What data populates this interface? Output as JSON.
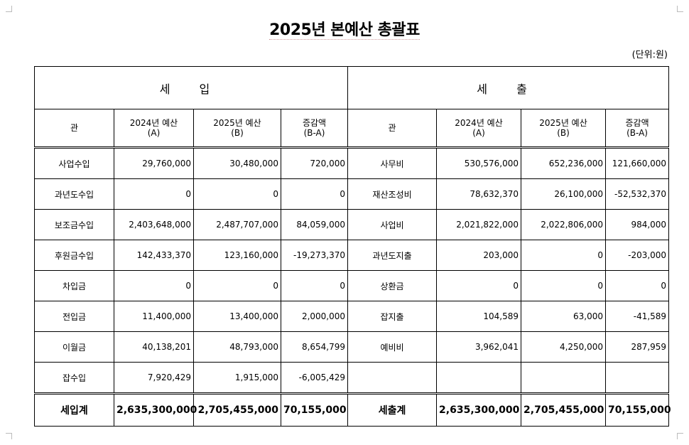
{
  "title": "2025년   본예산  총괄표",
  "unit_label": "(단위:원)",
  "sections": {
    "income": "세 입",
    "expense": "세 출"
  },
  "headers": {
    "category": "관",
    "prev_budget": [
      "2024년 예산",
      "(A)"
    ],
    "curr_budget": [
      "2025년 예산",
      "(B)"
    ],
    "diff": [
      "증감액",
      "(B-A)"
    ]
  },
  "rows": [
    {
      "in_name": "사업수입",
      "in_a": "29,760,000",
      "in_b": "30,480,000",
      "in_d": "720,000",
      "ex_name": "사무비",
      "ex_a": "530,576,000",
      "ex_b": "652,236,000",
      "ex_d": "121,660,000"
    },
    {
      "in_name": "과년도수입",
      "in_a": "0",
      "in_b": "0",
      "in_d": "0",
      "ex_name": "재산조성비",
      "ex_a": "78,632,370",
      "ex_b": "26,100,000",
      "ex_d": "-52,532,370"
    },
    {
      "in_name": "보조금수입",
      "in_a": "2,403,648,000",
      "in_b": "2,487,707,000",
      "in_d": "84,059,000",
      "ex_name": "사업비",
      "ex_a": "2,021,822,000",
      "ex_b": "2,022,806,000",
      "ex_d": "984,000"
    },
    {
      "in_name": "후원금수입",
      "in_a": "142,433,370",
      "in_b": "123,160,000",
      "in_d": "-19,273,370",
      "ex_name": "과년도지출",
      "ex_a": "203,000",
      "ex_b": "0",
      "ex_d": "-203,000"
    },
    {
      "in_name": "차입금",
      "in_a": "0",
      "in_b": "0",
      "in_d": "0",
      "ex_name": "상환금",
      "ex_a": "0",
      "ex_b": "0",
      "ex_d": "0"
    },
    {
      "in_name": "전입금",
      "in_a": "11,400,000",
      "in_b": "13,400,000",
      "in_d": "2,000,000",
      "ex_name": "잡지출",
      "ex_a": "104,589",
      "ex_b": "63,000",
      "ex_d": "-41,589"
    },
    {
      "in_name": "이월금",
      "in_a": "40,138,201",
      "in_b": "48,793,000",
      "in_d": "8,654,799",
      "ex_name": "예비비",
      "ex_a": "3,962,041",
      "ex_b": "4,250,000",
      "ex_d": "287,959"
    },
    {
      "in_name": "잡수입",
      "in_a": "7,920,429",
      "in_b": "1,915,000",
      "in_d": "-6,005,429",
      "ex_name": "",
      "ex_a": "",
      "ex_b": "",
      "ex_d": ""
    }
  ],
  "totals": {
    "in_name": "세입계",
    "in_a": "2,635,300,000",
    "in_b": "2,705,455,000",
    "in_d": "70,155,000",
    "ex_name": "세출계",
    "ex_a": "2,635,300,000",
    "ex_b": "2,705,455,000",
    "ex_d": "70,155,000"
  }
}
